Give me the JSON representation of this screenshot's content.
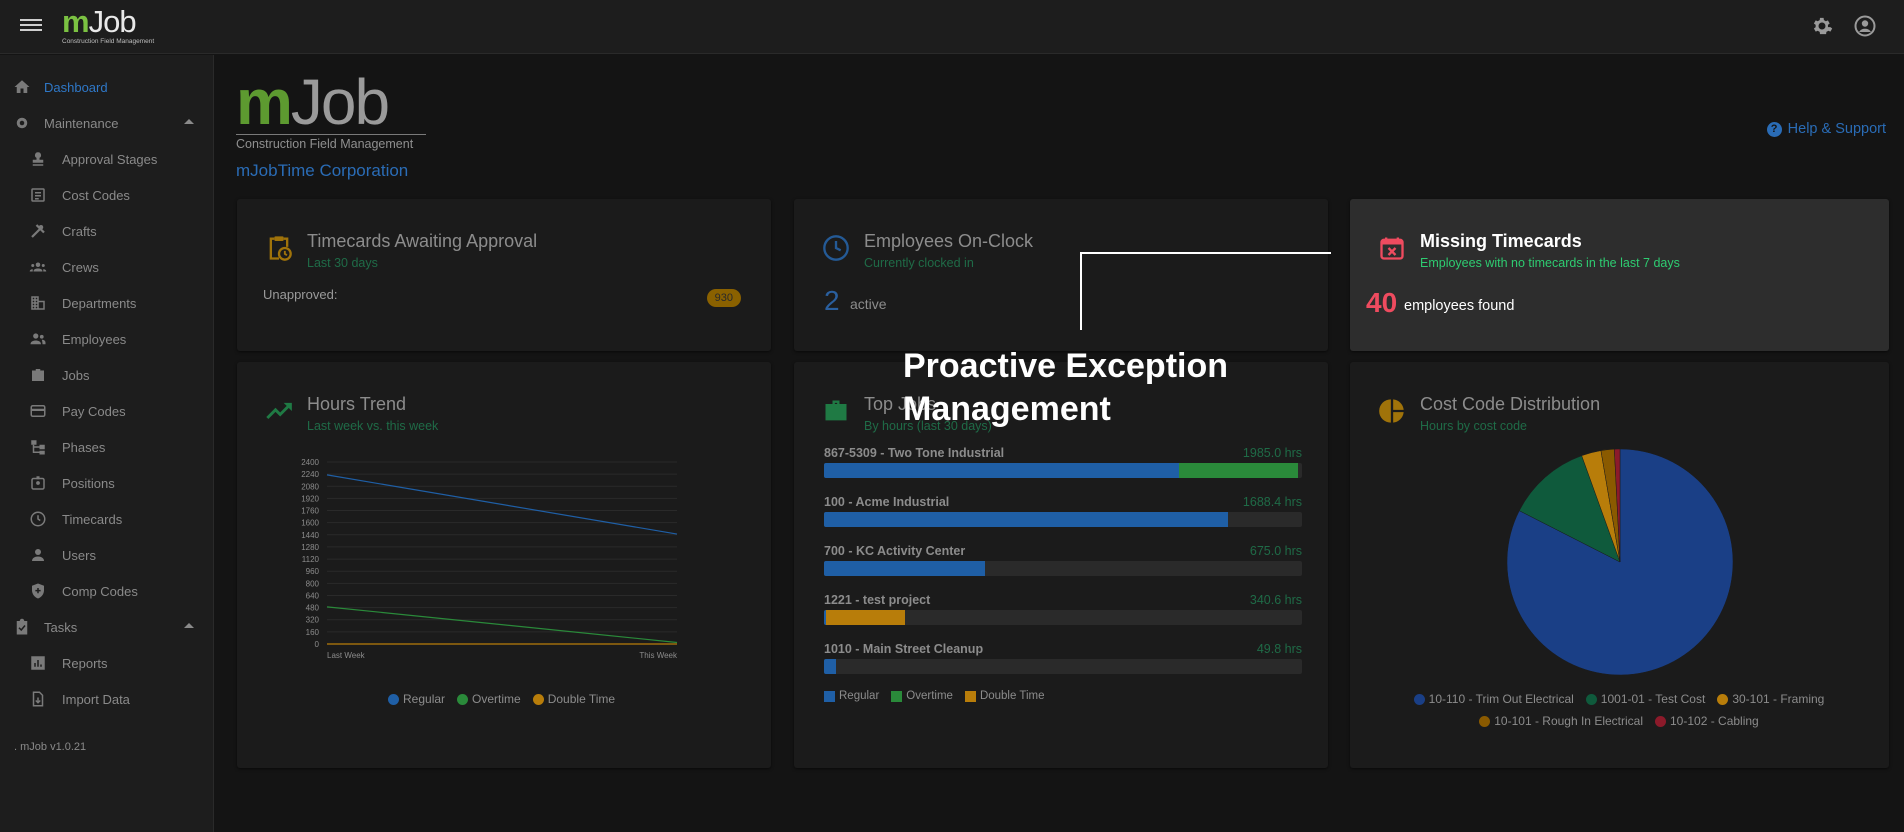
{
  "app": {
    "logo_m": "m",
    "logo_job": "Job",
    "logo_tagline": "Construction Field Management",
    "version": ". mJob v1.0.21"
  },
  "topbar": {
    "menu_icon": "hamburger-menu-icon",
    "settings_icon": "gear-icon",
    "account_icon": "account-circle-icon"
  },
  "sidebar": {
    "items": [
      {
        "label": "Dashboard",
        "icon": "home-icon",
        "active": true
      },
      {
        "label": "Maintenance",
        "icon": "gear-icon",
        "expanded": true
      },
      {
        "label": "Approval Stages",
        "icon": "stamp-icon"
      },
      {
        "label": "Cost Codes",
        "icon": "list-box-icon"
      },
      {
        "label": "Crafts",
        "icon": "tools-icon"
      },
      {
        "label": "Crews",
        "icon": "group-icon"
      },
      {
        "label": "Departments",
        "icon": "building-icon"
      },
      {
        "label": "Employees",
        "icon": "people-icon"
      },
      {
        "label": "Jobs",
        "icon": "briefcase-icon"
      },
      {
        "label": "Pay Codes",
        "icon": "credit-card-icon"
      },
      {
        "label": "Phases",
        "icon": "hierarchy-icon"
      },
      {
        "label": "Positions",
        "icon": "badge-icon"
      },
      {
        "label": "Timecards",
        "icon": "clock-icon"
      },
      {
        "label": "Users",
        "icon": "person-icon"
      },
      {
        "label": "Comp Codes",
        "icon": "shield-plus-icon"
      },
      {
        "label": "Tasks",
        "icon": "clipboard-check-icon",
        "expanded": true
      },
      {
        "label": "Reports",
        "icon": "bar-chart-icon"
      },
      {
        "label": "Import Data",
        "icon": "file-import-icon"
      }
    ]
  },
  "header": {
    "company": "mJobTime Corporation",
    "help": "Help & Support"
  },
  "cards": {
    "timecards": {
      "title": "Timecards Awaiting Approval",
      "subtitle": "Last 30 days",
      "label": "Unapproved:",
      "badge": "930",
      "icon": "clipboard-clock-icon"
    },
    "onclock": {
      "title": "Employees On-Clock",
      "subtitle": "Currently clocked in",
      "count": "2",
      "count_label": "active",
      "icon": "clock-icon"
    },
    "missing": {
      "title": "Missing Timecards",
      "subtitle": "Employees with no timecards in the last 7 days",
      "count": "40",
      "count_label": "employees found",
      "icon": "calendar-remove-icon"
    },
    "hours": {
      "title": "Hours Trend",
      "subtitle": "Last week vs. this week",
      "icon": "trending-up-icon"
    },
    "topjobs": {
      "title": "Top Jobs",
      "subtitle": "By hours (last 30 days)",
      "icon": "briefcase-icon"
    },
    "costcode": {
      "title": "Cost Code Distribution",
      "subtitle": "Hours by cost code",
      "icon": "pie-chart-icon"
    }
  },
  "overlay": {
    "caption": "Proactive Exception Management"
  },
  "colors": {
    "regular": "#1f5fa6",
    "overtime": "#2a8a3a",
    "double_time": "#b87d0a",
    "accent_green": "#7bc142",
    "alert_red": "#ef4b5f"
  },
  "chart_data": [
    {
      "type": "line",
      "x": [
        "Last Week",
        "This Week"
      ],
      "ylim": [
        0,
        2400
      ],
      "yticks": [
        0,
        160,
        320,
        480,
        640,
        800,
        960,
        1120,
        1280,
        1440,
        1600,
        1760,
        1920,
        2080,
        2240,
        2400
      ],
      "series": [
        {
          "name": "Regular",
          "values": [
            2230,
            1450
          ],
          "color": "#1f5fa6"
        },
        {
          "name": "Overtime",
          "values": [
            490,
            20
          ],
          "color": "#2a8a3a"
        },
        {
          "name": "Double Time",
          "values": [
            0,
            0
          ],
          "color": "#b87d0a"
        }
      ]
    },
    {
      "type": "bar",
      "orientation": "horizontal-stacked",
      "categories": [
        "867-5309 - Two Tone Industrial",
        "100 - Acme Industrial",
        "700 - KC Activity Center",
        "1221 - test project",
        "1010 - Main Street Cleanup"
      ],
      "totals": [
        "1985.0 hrs",
        "1688.4 hrs",
        "675.0 hrs",
        "340.6 hrs",
        "49.8 hrs"
      ],
      "series": [
        {
          "name": "Regular",
          "values": [
            1487,
            1688.4,
            675,
            10,
            49.8
          ],
          "color": "#1f5fa6"
        },
        {
          "name": "Overtime",
          "values": [
            498,
            0,
            0,
            0,
            0
          ],
          "color": "#2a8a3a"
        },
        {
          "name": "Double Time",
          "values": [
            0,
            0,
            0,
            330.6,
            0
          ],
          "color": "#b87d0a"
        }
      ],
      "xmax": 2000
    },
    {
      "type": "pie",
      "categories": [
        "10-110 - Trim Out Electrical",
        "1001-01 - Test Cost",
        "30-101 - Framing",
        "10-101 - Rough In Electrical",
        "10-102 - Cabling"
      ],
      "values": [
        82.5,
        12.0,
        2.8,
        1.9,
        0.8
      ],
      "colors": [
        "#1a3f86",
        "#0f5a3c",
        "#b87d0a",
        "#8a5a00",
        "#8c1a2a"
      ]
    }
  ]
}
